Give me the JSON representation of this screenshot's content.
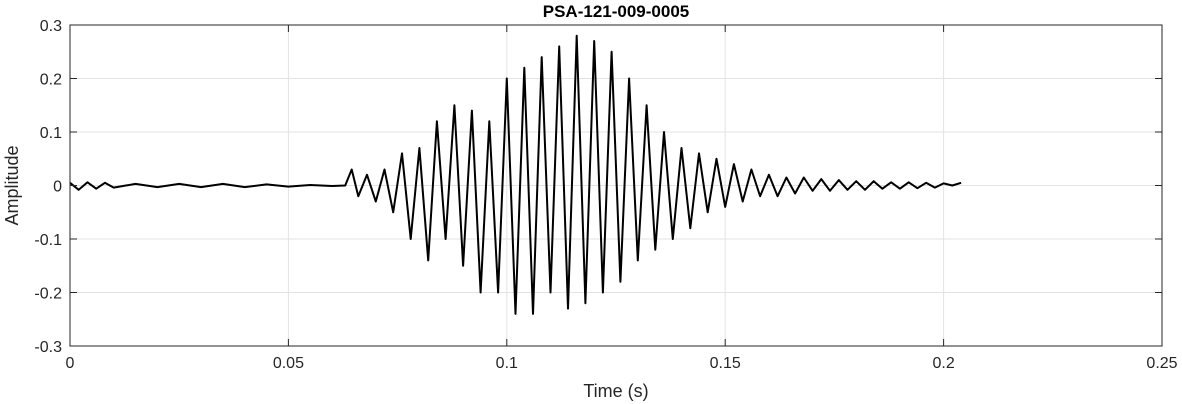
{
  "chart_data": {
    "type": "line",
    "title": "PSA-121-009-0005",
    "xlabel": "Time (s)",
    "ylabel": "Amplitude",
    "xlim": [
      0,
      0.25
    ],
    "ylim": [
      -0.3,
      0.3
    ],
    "xticks": [
      0,
      0.05,
      0.1,
      0.15,
      0.2,
      0.25
    ],
    "xtick_labels": [
      "0",
      "0.05",
      "0.1",
      "0.15",
      "0.2",
      "0.25"
    ],
    "yticks": [
      -0.3,
      -0.2,
      -0.1,
      0,
      0.1,
      0.2,
      0.3
    ],
    "ytick_labels": [
      "-0.3",
      "-0.2",
      "-0.1",
      "0",
      "0.1",
      "0.2",
      "0.3"
    ],
    "grid": true,
    "series": [
      {
        "color": "#000000",
        "x": [
          0,
          0.002,
          0.004,
          0.006,
          0.008,
          0.01,
          0.015,
          0.02,
          0.025,
          0.03,
          0.035,
          0.04,
          0.045,
          0.05,
          0.055,
          0.06,
          0.063,
          0.0645,
          0.066,
          0.068,
          0.07,
          0.072,
          0.074,
          0.076,
          0.078,
          0.08,
          0.082,
          0.084,
          0.086,
          0.088,
          0.09,
          0.092,
          0.094,
          0.096,
          0.098,
          0.1,
          0.102,
          0.104,
          0.106,
          0.108,
          0.11,
          0.112,
          0.114,
          0.116,
          0.118,
          0.12,
          0.122,
          0.124,
          0.126,
          0.128,
          0.13,
          0.132,
          0.134,
          0.136,
          0.138,
          0.14,
          0.142,
          0.144,
          0.146,
          0.148,
          0.15,
          0.152,
          0.154,
          0.156,
          0.158,
          0.16,
          0.162,
          0.164,
          0.166,
          0.168,
          0.17,
          0.172,
          0.174,
          0.176,
          0.178,
          0.18,
          0.182,
          0.184,
          0.186,
          0.188,
          0.19,
          0.192,
          0.194,
          0.196,
          0.198,
          0.2,
          0.202,
          0.204
        ],
        "y": [
          0.005,
          -0.008,
          0.006,
          -0.006,
          0.005,
          -0.004,
          0.003,
          -0.003,
          0.003,
          -0.003,
          0.003,
          -0.003,
          0.002,
          -0.002,
          0.001,
          -0.001,
          0.0,
          0.03,
          -0.02,
          0.02,
          -0.03,
          0.03,
          -0.05,
          0.06,
          -0.1,
          0.07,
          -0.14,
          0.12,
          -0.1,
          0.15,
          -0.15,
          0.14,
          -0.2,
          0.12,
          -0.2,
          0.2,
          -0.24,
          0.22,
          -0.24,
          0.24,
          -0.2,
          0.26,
          -0.23,
          0.28,
          -0.22,
          0.27,
          -0.2,
          0.25,
          -0.18,
          0.2,
          -0.14,
          0.15,
          -0.12,
          0.1,
          -0.1,
          0.07,
          -0.08,
          0.06,
          -0.05,
          0.05,
          -0.04,
          0.04,
          -0.03,
          0.03,
          -0.02,
          0.02,
          -0.02,
          0.015,
          -0.015,
          0.015,
          -0.01,
          0.012,
          -0.01,
          0.01,
          -0.008,
          0.008,
          -0.008,
          0.008,
          -0.006,
          0.006,
          -0.006,
          0.006,
          -0.005,
          0.005,
          -0.004,
          0.004,
          0.0,
          0.005
        ]
      }
    ]
  }
}
